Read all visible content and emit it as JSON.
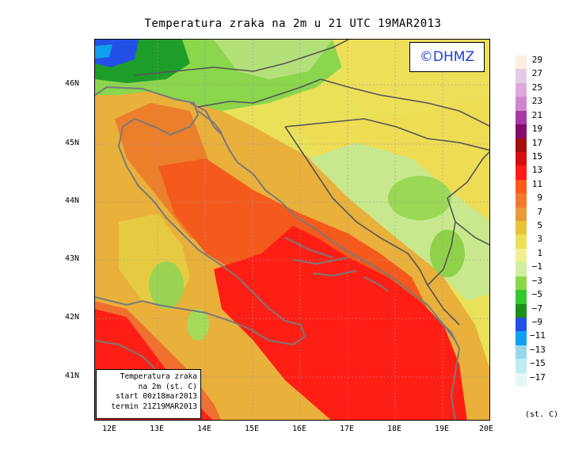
{
  "title": "Temperatura zraka na 2m u 21 UTC 19MAR2013",
  "watermark": "©DHMZ",
  "info_box": {
    "line1": "Temperatura zraka",
    "line2": "na 2m (st. C)",
    "line3": "start 00z18mar2013",
    "line4": "termin 21Z19MAR2013"
  },
  "lat_labels": [
    "46N",
    "45N",
    "44N",
    "43N",
    "42N",
    "41N"
  ],
  "lon_labels": [
    "12E",
    "13E",
    "14E",
    "15E",
    "16E",
    "17E",
    "18E",
    "19E",
    "20E"
  ],
  "legend": {
    "unit": "(st. C)",
    "labels": [
      "29",
      "27",
      "25",
      "23",
      "21",
      "19",
      "17",
      "15",
      "13",
      "11",
      "9",
      "7",
      "5",
      "3",
      "1",
      "−1",
      "−3",
      "−5",
      "−7",
      "−9",
      "−11",
      "−13",
      "−15",
      "−17"
    ],
    "colors": [
      "#fbeee2",
      "#e3cce3",
      "#dcaada",
      "#cf85d0",
      "#a638a8",
      "#850c6a",
      "#a50e0e",
      "#d5110f",
      "#ff1a1a",
      "#ff5a1a",
      "#f27a2a",
      "#e99b3b",
      "#e9c43a",
      "#eee056",
      "#f0f090",
      "#d2eea2",
      "#8ad84a",
      "#34c830",
      "#1a8f1a",
      "#2350e6",
      "#10a0f0",
      "#9ad7ec",
      "#c0ecf2",
      "#e4f8f8"
    ]
  },
  "colors": {
    "coast": "#7a7a7a",
    "border": "#555555",
    "grid": "#9a9a9a",
    "sea_warm": "#ff2a1a",
    "sea_mid": "#f46a2a",
    "land_mild": "#e9cb48",
    "land_cool": "#9bd855"
  }
}
